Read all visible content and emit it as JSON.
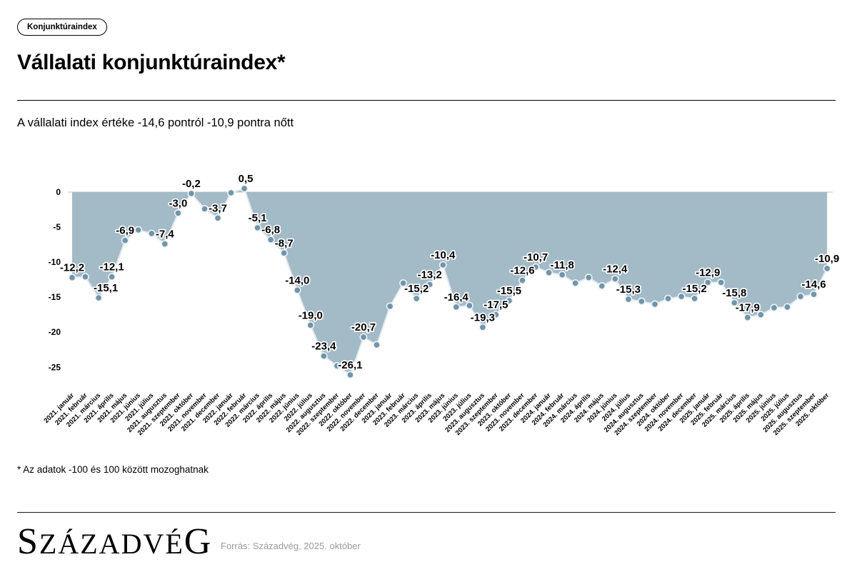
{
  "badge": {
    "label": "Konjunktúraindex"
  },
  "header": {
    "title": "Vállalati konjunktúraindex*",
    "subtitle": "A vállalati index értéke -14,6 pontról -10,9 pontra nőtt"
  },
  "footnote": "* Az adatok -100 és 100 között mozoghatnak",
  "footer": {
    "logo_text": "SZÁZADVÉG",
    "source": "Forrás: Századvég, 2025. október"
  },
  "chart_data": {
    "type": "area",
    "title": "Vállalati konjunktúraindex",
    "baseline": 0,
    "ylim": [
      -28,
      2
    ],
    "y_ticks": [
      0,
      -5,
      -10,
      -15,
      -20,
      -25
    ],
    "grid": "zero-line-only",
    "legend": "none",
    "x": [
      "2021. január",
      "2021. február",
      "2021. március",
      "2021. április",
      "2021. május",
      "2021. június",
      "2021. július",
      "2021. augusztus",
      "2021. szeptember",
      "2021. október",
      "2021. november",
      "2021. december",
      "2022. január",
      "2022. február",
      "2022. március",
      "2022. április",
      "2022. május",
      "2022. június",
      "2022. július",
      "2022. augusztus",
      "2022. szeptember",
      "2022. október",
      "2022. november",
      "2022. december",
      "2023. január",
      "2023. február",
      "2023. március",
      "2023. április",
      "2023. május",
      "2023. június",
      "2023. július",
      "2023. augusztus",
      "2023. szeptember",
      "2023. október",
      "2023. november",
      "2023. december",
      "2024. január",
      "2024. február",
      "2024. március",
      "2024. április",
      "2024. május",
      "2024. június",
      "2024. július",
      "2024. augusztus",
      "2024. szeptember",
      "2024. október",
      "2024. november",
      "2024. december",
      "2025. január",
      "2025. február",
      "2025. március",
      "2025. április",
      "2025. május",
      "2025. június",
      "2025. július",
      "2025. augusztus",
      "2025. szeptember",
      "2025. október"
    ],
    "values": [
      -12.2,
      -12.1,
      -15.1,
      -12.1,
      -6.9,
      -5.4,
      -5.9,
      -7.4,
      -3.0,
      -0.2,
      -2.4,
      -3.7,
      -0.1,
      0.5,
      -5.1,
      -6.8,
      -8.7,
      -14.0,
      -19.0,
      -23.4,
      -24.8,
      -26.1,
      -20.7,
      -21.8,
      -16.3,
      -13.0,
      -15.2,
      -13.2,
      -10.4,
      -16.4,
      -16.2,
      -19.3,
      -17.5,
      -15.5,
      -12.6,
      -10.7,
      -11.5,
      -11.8,
      -13.0,
      -12.2,
      -13.4,
      -12.4,
      -15.3,
      -15.6,
      -16.0,
      -15.2,
      -14.9,
      -15.2,
      -12.9,
      -12.9,
      -15.8,
      -17.9,
      -17.5,
      -16.5,
      -16.4,
      -14.9,
      -14.6,
      -10.9
    ],
    "point_labels": {
      "0": "-12,2",
      "2": "-15,1",
      "3": "-12,1",
      "4": "-6,9",
      "7": "-7,4",
      "8": "-3,0",
      "9": "-0,2",
      "11": "-3,7",
      "13": "0,5",
      "14": "-5,1",
      "15": "-6,8",
      "16": "-8,7",
      "17": "-14,0",
      "18": "-19,0",
      "19": "-23,4",
      "21": "-26,1",
      "22": "-20,7",
      "26": "-15,2",
      "27": "-13,2",
      "28": "-10,4",
      "29": "-16,4",
      "31": "-19,3",
      "32": "-17,5",
      "33": "-15,5",
      "34": "-12,6",
      "35": "-10,7",
      "37": "-11,8",
      "41": "-12,4",
      "42": "-15,3",
      "47": "-15,2",
      "48": "-12,9",
      "50": "-15,8",
      "51": "-17,9",
      "56": "-14,6",
      "57": "-10,9"
    },
    "label_dx": {
      "2": 10,
      "13": 2
    },
    "colors": {
      "area": "#a3bac7",
      "line": "#e2e9ed",
      "marker": "#7095aa",
      "marker_stroke": "#eef3f6",
      "zero_line": "#c9ced1",
      "label_text": "#000000",
      "source_text": "#9a9a9a"
    }
  }
}
